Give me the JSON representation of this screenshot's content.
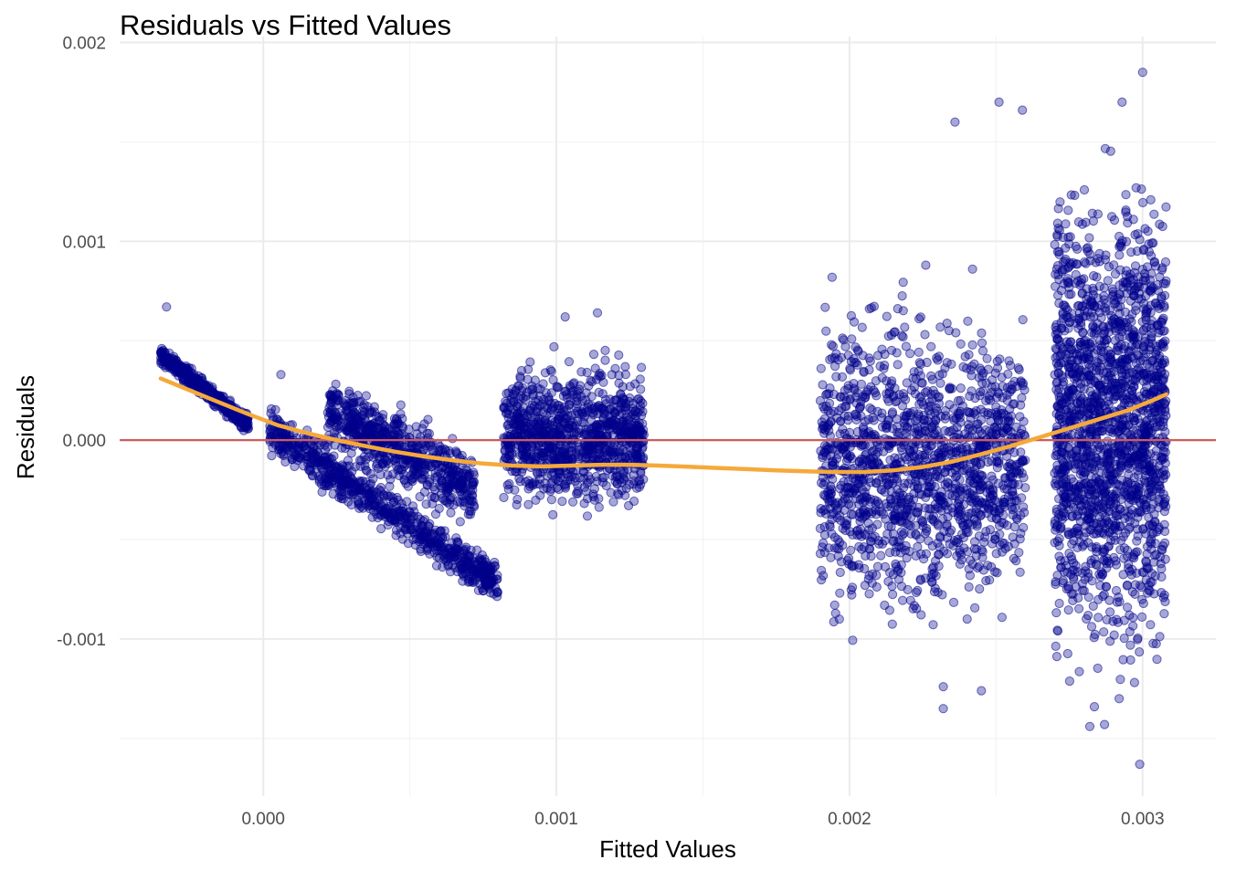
{
  "chart_data": {
    "type": "scatter",
    "title": "Residuals vs Fitted Values",
    "xlabel": "Fitted Values",
    "ylabel": "Residuals",
    "xlim": [
      -0.00049,
      0.00325
    ],
    "ylim": [
      -0.00179,
      0.00203
    ],
    "x_ticks": [
      0.0,
      0.001,
      0.002,
      0.003
    ],
    "x_tick_labels": [
      "0.000",
      "0.001",
      "0.002",
      "0.003"
    ],
    "y_ticks": [
      -0.001,
      0.0,
      0.001,
      0.002
    ],
    "y_tick_labels": [
      "-0.001",
      "0.000",
      "0.001",
      "0.002"
    ],
    "grid": true,
    "legend": "none",
    "colors": {
      "points": "#00008b",
      "smooth": "#f5a93a",
      "reference": "#cd5c5c",
      "grid": "#ebebeb"
    },
    "point_opacity": 0.35,
    "reference_line": {
      "y": 0.0
    },
    "smooth_curve": {
      "x": [
        -0.00035,
        -0.00025,
        -0.00015,
        -5e-05,
        5e-05,
        0.00015,
        0.00025,
        0.00035,
        0.00045,
        0.00055,
        0.00065,
        0.00075,
        0.00085,
        0.00095,
        0.00105,
        0.00115,
        0.00125,
        0.00135,
        0.00145,
        0.00155,
        0.00165,
        0.00175,
        0.00185,
        0.00195,
        0.00205,
        0.00215,
        0.00225,
        0.00235,
        0.00245,
        0.00255,
        0.00265,
        0.00275,
        0.00285,
        0.00295,
        0.00305,
        0.00308
      ],
      "y": [
        0.00031,
        0.00025,
        0.00019,
        0.00013,
        7.5e-05,
        3.5e-05,
        0.0,
        -3e-05,
        -5.8e-05,
        -8.2e-05,
        -0.000102,
        -0.000118,
        -0.000128,
        -0.000132,
        -0.000128,
        -0.000124,
        -0.000124,
        -0.000128,
        -0.000134,
        -0.00014,
        -0.000146,
        -0.000152,
        -0.000157,
        -0.00016,
        -0.00016,
        -0.000152,
        -0.000135,
        -0.000108,
        -7e-05,
        -3e-05,
        1.5e-05,
        6e-05,
        0.000105,
        0.00015,
        0.00021,
        0.00023
      ]
    },
    "point_clusters": [
      {
        "x_range": [
          -0.00035,
          -5e-05
        ],
        "y_start": 0.00043,
        "y_end": 8e-05,
        "spread": 2e-05,
        "count": 500
      },
      {
        "x_range": [
          2e-05,
          0.0008
        ],
        "y_start": 5e-05,
        "y_end": -0.00072,
        "spread": 5e-05,
        "count": 750
      },
      {
        "x_range": [
          0.00022,
          0.00072
        ],
        "y_start": 0.00015,
        "y_end": -0.00025,
        "spread": 8e-05,
        "count": 650
      },
      {
        "x_range": [
          0.00082,
          0.0013
        ],
        "y_center": 2e-05,
        "spread": 0.00015,
        "count": 1000
      },
      {
        "x_range": [
          0.0019,
          0.0026
        ],
        "y_center": -0.00012,
        "spread": 0.00032,
        "count": 1500
      },
      {
        "x_range": [
          0.0027,
          0.00308
        ],
        "y_center": 0.0001,
        "spread": 0.0005,
        "count": 1800
      }
    ],
    "outliers": [
      {
        "x": -0.00033,
        "y": 0.00067
      },
      {
        "x": 6e-05,
        "y": 0.00033
      },
      {
        "x": 0.00103,
        "y": 0.00062
      },
      {
        "x": 0.00114,
        "y": 0.00064
      },
      {
        "x": 0.00232,
        "y": -0.00124
      },
      {
        "x": 0.00232,
        "y": -0.00135
      },
      {
        "x": 0.00245,
        "y": -0.00126
      },
      {
        "x": 0.00251,
        "y": 0.0017
      },
      {
        "x": 0.00259,
        "y": 0.00166
      },
      {
        "x": 0.00282,
        "y": -0.00144
      },
      {
        "x": 0.00287,
        "y": -0.00143
      },
      {
        "x": 0.00299,
        "y": -0.00163
      },
      {
        "x": 0.003,
        "y": 0.00185
      },
      {
        "x": 0.00292,
        "y": -0.0013
      },
      {
        "x": 0.00236,
        "y": 0.0016
      },
      {
        "x": 0.00226,
        "y": 0.00088
      },
      {
        "x": 0.00293,
        "y": 0.0017
      }
    ]
  }
}
